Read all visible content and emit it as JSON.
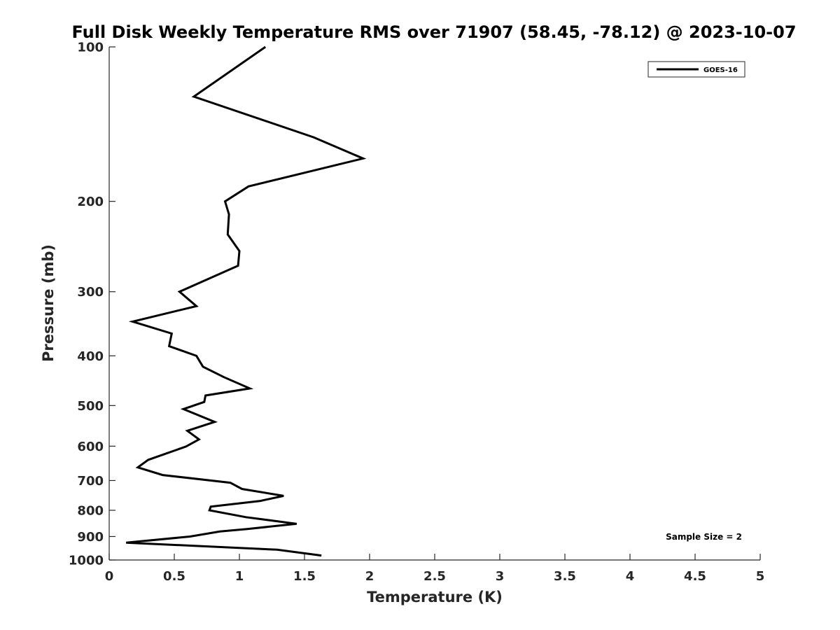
{
  "chart_data": {
    "type": "line",
    "title": "Full Disk Weekly Temperature RMS over 71907 (58.45, -78.12) @ 2023-10-07",
    "xlabel": "Temperature (K)",
    "ylabel": "Pressure (mb)",
    "xlim": [
      0,
      5
    ],
    "ylim": [
      1000,
      100
    ],
    "y_scale": "log",
    "x_ticks": [
      "0",
      "0.5",
      "1",
      "1.5",
      "2",
      "2.5",
      "3",
      "3.5",
      "4",
      "4.5",
      "5"
    ],
    "y_ticks": [
      "100",
      "200",
      "300",
      "400",
      "500",
      "600",
      "700",
      "800",
      "900",
      "1000"
    ],
    "grid": false,
    "legend_position": "top-right",
    "annotation": "Sample Size = 2",
    "series": [
      {
        "name": "GOES-16",
        "color": "#000000",
        "x": [
          1.2,
          0.65,
          1.57,
          1.95,
          1.07,
          0.89,
          0.92,
          0.91,
          1.0,
          0.99,
          0.54,
          0.67,
          0.18,
          0.48,
          0.46,
          0.67,
          0.72,
          0.88,
          1.08,
          0.74,
          0.73,
          0.57,
          0.81,
          0.6,
          0.69,
          0.59,
          0.3,
          0.22,
          0.41,
          0.93,
          1.02,
          1.34,
          1.16,
          0.78,
          0.77,
          1.05,
          1.44,
          1.06,
          0.85,
          0.62,
          0.13,
          1.29,
          1.63
        ],
        "y": [
          100,
          125,
          150,
          165,
          187,
          200,
          212,
          232,
          250,
          267,
          300,
          320,
          343,
          362,
          383,
          400,
          420,
          440,
          463,
          478,
          492,
          508,
          538,
          560,
          582,
          601,
          638,
          660,
          683,
          707,
          727,
          750,
          767,
          787,
          800,
          825,
          850,
          870,
          880,
          900,
          925,
          955,
          980
        ]
      }
    ]
  }
}
